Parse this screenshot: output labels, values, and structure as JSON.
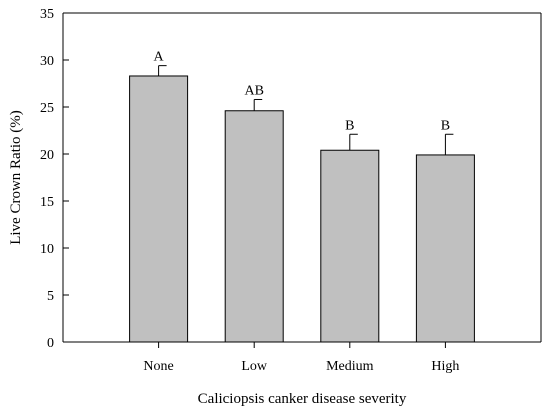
{
  "chart_data": {
    "type": "bar",
    "xlabel": "Caliciopsis canker disease severity",
    "ylabel": "Live Crown Ratio (%)",
    "ylim": [
      0,
      35
    ],
    "yticks": [
      0,
      5,
      10,
      15,
      20,
      25,
      30,
      35
    ],
    "categories": [
      "None",
      "Low",
      "Medium",
      "High"
    ],
    "values": [
      28.3,
      24.6,
      20.4,
      19.9
    ],
    "errors": [
      1.1,
      1.2,
      1.7,
      2.2
    ],
    "significance_labels": [
      "A",
      "AB",
      "B",
      "B"
    ],
    "bar_color": "#c0c0c0",
    "grid": false,
    "legend": "none"
  }
}
